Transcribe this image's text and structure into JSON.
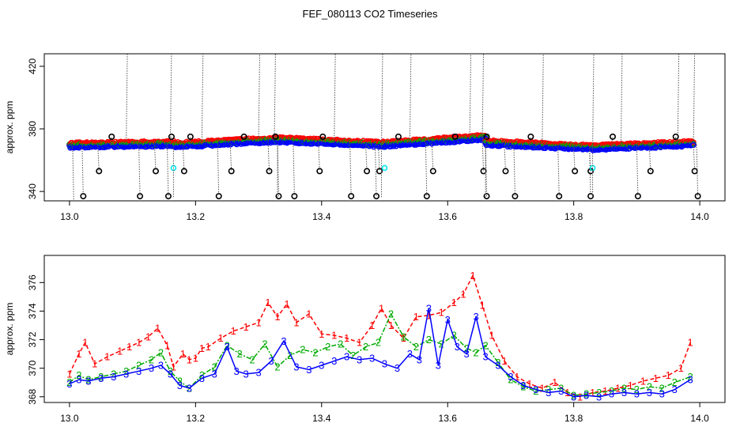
{
  "title": "FEF_080113  CO2 Timeseries",
  "chart_data": [
    {
      "type": "scatter",
      "ylabel": "approx. ppm",
      "xlim": [
        12.96,
        14.04
      ],
      "ylim": [
        334,
        428
      ],
      "xticks": [
        "13.0",
        "13.2",
        "13.4",
        "13.6",
        "13.8",
        "14.0"
      ],
      "yticks": [
        "340",
        "380",
        "420"
      ],
      "colors": {
        "r": "#ff0000",
        "g": "#00aa00",
        "b": "#0000ff",
        "k": "#000000",
        "c": "#00e5ee"
      },
      "segments": [
        {
          "x0": 13.0,
          "x1": 13.165,
          "y0": 369,
          "y1": 370
        },
        {
          "x0": 13.165,
          "x1": 13.33,
          "y0": 369,
          "y1": 372.5
        },
        {
          "x0": 13.33,
          "x1": 13.495,
          "y0": 372.5,
          "y1": 369.5
        },
        {
          "x0": 13.495,
          "x1": 13.66,
          "y0": 369.5,
          "y1": 374
        },
        {
          "x0": 13.66,
          "x1": 13.83,
          "y0": 370.5,
          "y1": 367.5
        },
        {
          "x0": 13.83,
          "x1": 13.99,
          "y0": 367.5,
          "y1": 370
        }
      ],
      "spikes": [
        {
          "x": 13.09,
          "y": 430
        },
        {
          "x": 13.16,
          "y": 430
        },
        {
          "x": 13.21,
          "y": 430
        },
        {
          "x": 13.3,
          "y": 430
        },
        {
          "x": 13.325,
          "y": 430
        },
        {
          "x": 13.42,
          "y": 430
        },
        {
          "x": 13.495,
          "y": 430
        },
        {
          "x": 13.54,
          "y": 430
        },
        {
          "x": 13.635,
          "y": 430
        },
        {
          "x": 13.655,
          "y": 430
        },
        {
          "x": 13.75,
          "y": 430
        },
        {
          "x": 13.83,
          "y": 430
        },
        {
          "x": 13.875,
          "y": 430
        },
        {
          "x": 13.965,
          "y": 430
        },
        {
          "x": 13.99,
          "y": 430
        },
        {
          "x": 13.065,
          "y": 375
        },
        {
          "x": 13.16,
          "y": 375
        },
        {
          "x": 13.19,
          "y": 375
        },
        {
          "x": 13.275,
          "y": 375
        },
        {
          "x": 13.325,
          "y": 375
        },
        {
          "x": 13.4,
          "y": 375
        },
        {
          "x": 13.52,
          "y": 375
        },
        {
          "x": 13.61,
          "y": 375
        },
        {
          "x": 13.66,
          "y": 375
        },
        {
          "x": 13.73,
          "y": 375
        },
        {
          "x": 13.86,
          "y": 375
        },
        {
          "x": 13.96,
          "y": 375
        },
        {
          "x": 13.045,
          "y": 353
        },
        {
          "x": 13.135,
          "y": 353
        },
        {
          "x": 13.18,
          "y": 353
        },
        {
          "x": 13.255,
          "y": 353
        },
        {
          "x": 13.315,
          "y": 353
        },
        {
          "x": 13.395,
          "y": 353
        },
        {
          "x": 13.47,
          "y": 353
        },
        {
          "x": 13.49,
          "y": 353
        },
        {
          "x": 13.575,
          "y": 353
        },
        {
          "x": 13.655,
          "y": 353
        },
        {
          "x": 13.69,
          "y": 353
        },
        {
          "x": 13.8,
          "y": 353
        },
        {
          "x": 13.825,
          "y": 353
        },
        {
          "x": 13.92,
          "y": 353
        },
        {
          "x": 13.99,
          "y": 353
        },
        {
          "x": 13.005,
          "y": 331
        },
        {
          "x": 13.02,
          "y": 337
        },
        {
          "x": 13.11,
          "y": 337
        },
        {
          "x": 13.155,
          "y": 337
        },
        {
          "x": 13.235,
          "y": 337
        },
        {
          "x": 13.33,
          "y": 337
        },
        {
          "x": 13.355,
          "y": 337
        },
        {
          "x": 13.445,
          "y": 337
        },
        {
          "x": 13.485,
          "y": 337
        },
        {
          "x": 13.565,
          "y": 337
        },
        {
          "x": 13.66,
          "y": 337
        },
        {
          "x": 13.705,
          "y": 337
        },
        {
          "x": 13.775,
          "y": 337
        },
        {
          "x": 13.825,
          "y": 337
        },
        {
          "x": 13.9,
          "y": 337
        },
        {
          "x": 13.995,
          "y": 337
        }
      ],
      "cyan_points": [
        {
          "x": 13.165,
          "y": 355
        },
        {
          "x": 13.5,
          "y": 355
        },
        {
          "x": 13.83,
          "y": 355
        }
      ]
    },
    {
      "type": "line",
      "ylabel": "approx. ppm",
      "xlim": [
        12.96,
        14.04
      ],
      "ylim": [
        367.6,
        377.9
      ],
      "xticks": [
        "13.0",
        "13.2",
        "13.4",
        "13.6",
        "13.8",
        "14.0"
      ],
      "yticks": [
        "368",
        "370",
        "372",
        "374",
        "376"
      ],
      "series": [
        {
          "label": "1",
          "color": "#ff0000",
          "x": [
            13.0,
            13.015,
            13.025,
            13.04,
            13.06,
            13.08,
            13.095,
            13.11,
            13.125,
            13.14,
            13.155,
            13.165,
            13.18,
            13.19,
            13.2,
            13.21,
            13.22,
            13.24,
            13.26,
            13.28,
            13.3,
            13.315,
            13.33,
            13.345,
            13.36,
            13.38,
            13.4,
            13.42,
            13.44,
            13.46,
            13.48,
            13.495,
            13.51,
            13.53,
            13.55,
            13.57,
            13.59,
            13.61,
            13.625,
            13.64,
            13.655,
            13.67,
            13.69,
            13.71,
            13.73,
            13.75,
            13.77,
            13.79,
            13.81,
            13.83,
            13.85,
            13.87,
            13.89,
            13.91,
            13.93,
            13.95,
            13.97,
            13.985
          ],
          "y": [
            369.6,
            371.0,
            371.8,
            370.3,
            370.8,
            371.2,
            371.5,
            371.8,
            372.2,
            372.8,
            371.6,
            370.1,
            371.0,
            370.6,
            370.7,
            371.4,
            371.5,
            372.1,
            372.6,
            372.9,
            373.2,
            374.6,
            373.6,
            374.5,
            373.2,
            373.8,
            372.4,
            372.3,
            372.1,
            371.8,
            373.0,
            374.2,
            373.0,
            372.1,
            373.6,
            373.7,
            373.9,
            374.6,
            375.2,
            376.5,
            374.4,
            372.3,
            370.5,
            369.4,
            368.9,
            368.6,
            369.0,
            368.3,
            368.0,
            368.3,
            368.4,
            368.6,
            368.8,
            369.1,
            369.3,
            369.5,
            370.0,
            371.8
          ]
        },
        {
          "label": "2",
          "color": "#00aa00",
          "x": [
            13.0,
            13.015,
            13.03,
            13.05,
            13.07,
            13.09,
            13.11,
            13.13,
            13.145,
            13.16,
            13.175,
            13.19,
            13.21,
            13.23,
            13.25,
            13.27,
            13.29,
            13.31,
            13.33,
            13.35,
            13.37,
            13.39,
            13.41,
            13.43,
            13.45,
            13.47,
            13.49,
            13.51,
            13.53,
            13.55,
            13.57,
            13.59,
            13.61,
            13.63,
            13.645,
            13.66,
            13.68,
            13.7,
            13.72,
            13.74,
            13.76,
            13.78,
            13.8,
            13.82,
            13.84,
            13.86,
            13.88,
            13.9,
            13.92,
            13.94,
            13.96,
            13.985
          ],
          "y": [
            369.0,
            369.5,
            369.2,
            369.4,
            369.6,
            369.8,
            370.2,
            370.6,
            371.1,
            369.8,
            369.1,
            368.6,
            369.5,
            370.1,
            371.6,
            371.0,
            370.6,
            371.7,
            370.1,
            370.9,
            371.3,
            371.1,
            371.5,
            371.7,
            370.9,
            371.5,
            371.8,
            373.8,
            372.2,
            371.5,
            372.0,
            371.7,
            372.3,
            371.4,
            371.1,
            371.6,
            370.4,
            369.2,
            368.7,
            368.4,
            368.5,
            368.6,
            368.1,
            368.2,
            368.3,
            368.4,
            368.6,
            368.5,
            368.7,
            368.6,
            369.0,
            369.4
          ]
        },
        {
          "label": "3",
          "color": "#0000ff",
          "x": [
            13.0,
            13.015,
            13.03,
            13.05,
            13.07,
            13.09,
            13.11,
            13.13,
            13.145,
            13.16,
            13.175,
            13.19,
            13.21,
            13.23,
            13.25,
            13.265,
            13.28,
            13.3,
            13.32,
            13.34,
            13.36,
            13.38,
            13.4,
            13.42,
            13.44,
            13.46,
            13.48,
            13.5,
            13.52,
            13.54,
            13.555,
            13.57,
            13.585,
            13.6,
            13.615,
            13.63,
            13.645,
            13.66,
            13.68,
            13.7,
            13.72,
            13.74,
            13.76,
            13.78,
            13.8,
            13.82,
            13.84,
            13.86,
            13.88,
            13.9,
            13.92,
            13.94,
            13.96,
            13.985
          ],
          "y": [
            368.9,
            369.2,
            369.1,
            369.3,
            369.4,
            369.6,
            369.8,
            370.0,
            370.2,
            369.6,
            368.8,
            368.6,
            369.3,
            369.6,
            371.5,
            369.8,
            369.6,
            369.7,
            370.5,
            371.9,
            370.1,
            369.9,
            370.2,
            370.5,
            370.8,
            370.6,
            370.7,
            370.3,
            370.0,
            371.0,
            370.6,
            374.2,
            370.2,
            373.4,
            371.5,
            371.0,
            373.6,
            370.8,
            370.2,
            369.4,
            368.8,
            368.5,
            368.3,
            368.4,
            368.0,
            368.1,
            368.0,
            368.2,
            368.3,
            368.2,
            368.3,
            368.2,
            368.5,
            369.2
          ]
        }
      ]
    }
  ]
}
